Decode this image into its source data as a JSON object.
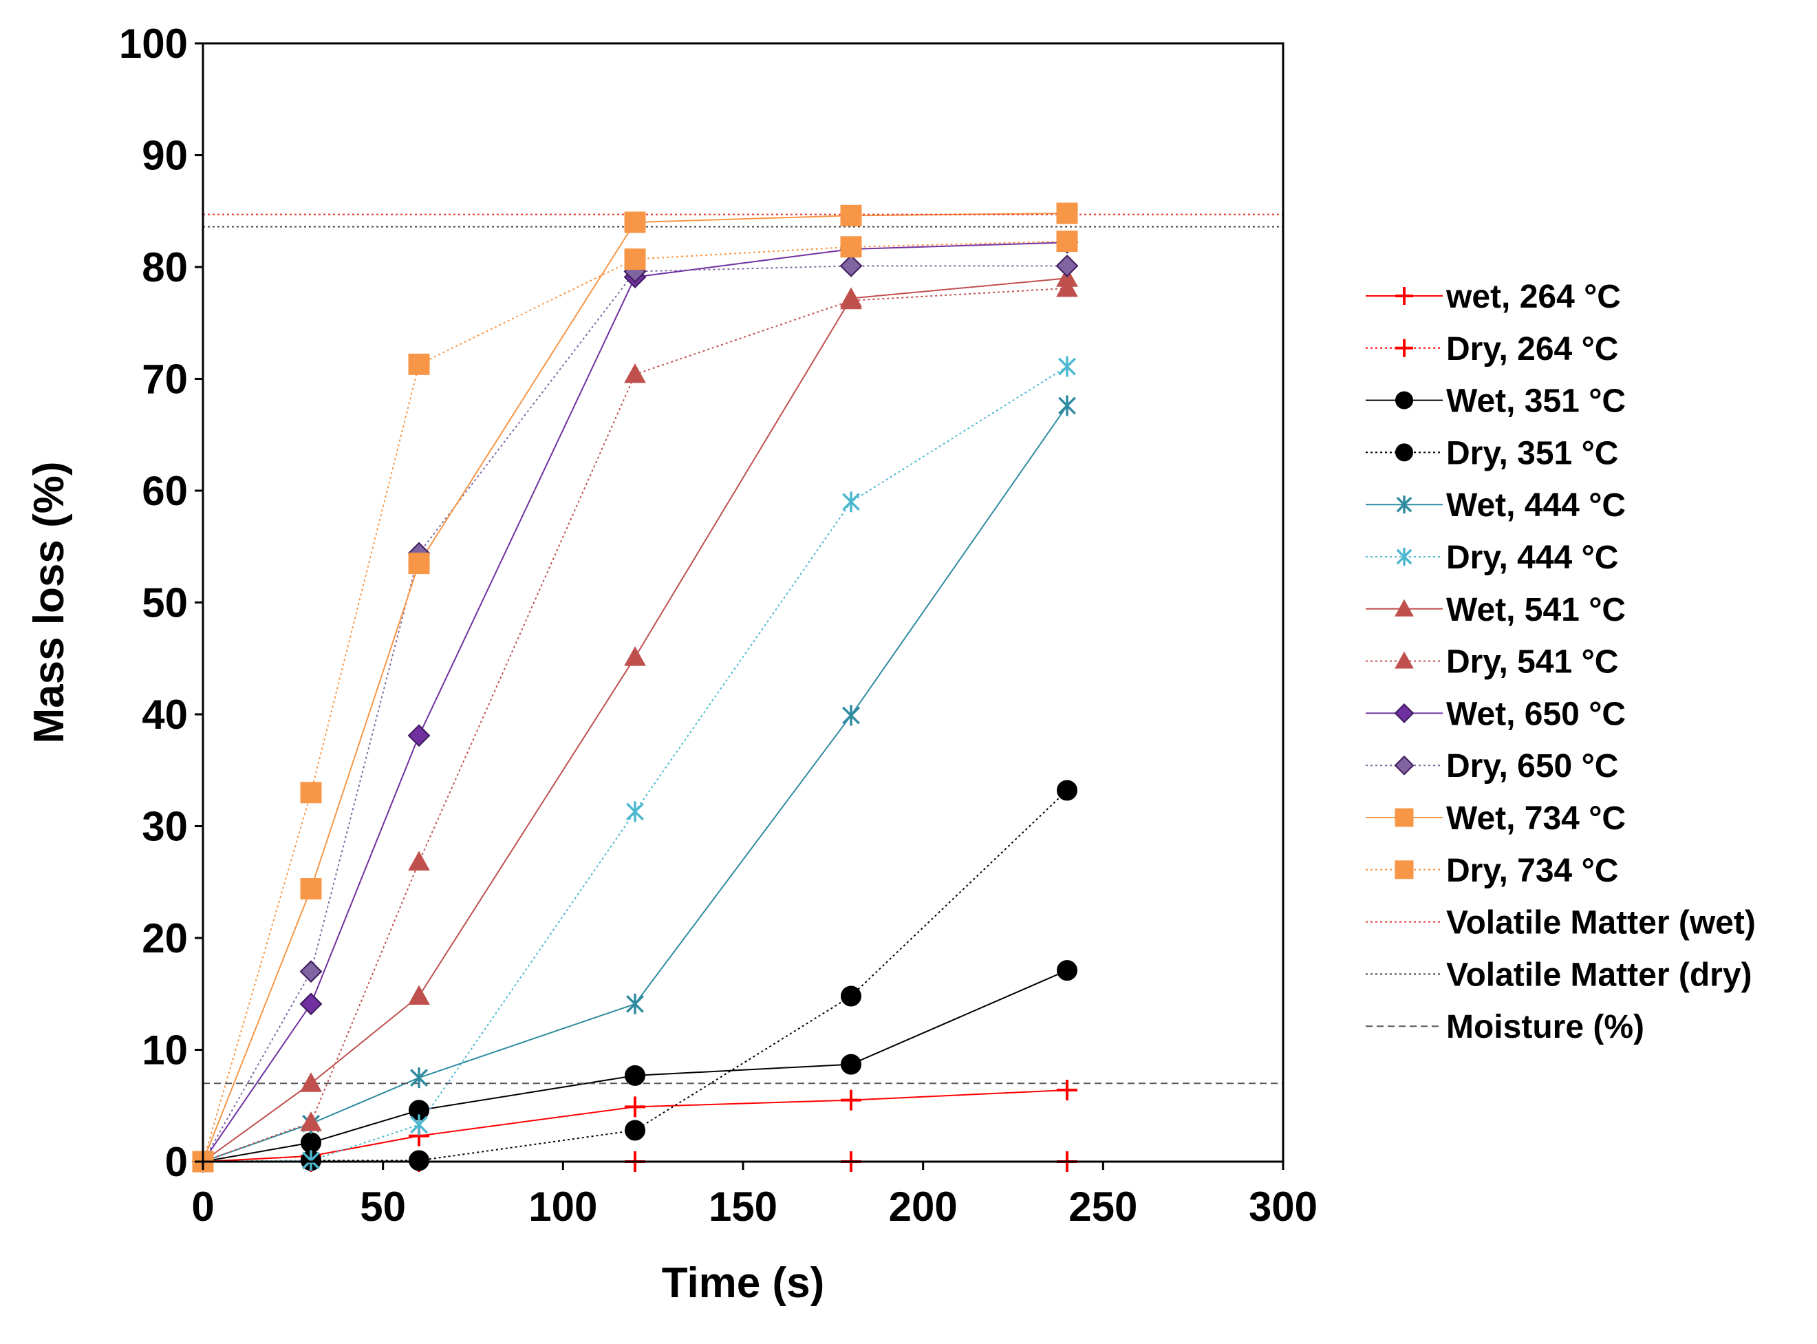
{
  "chart_data": {
    "type": "line",
    "title": "",
    "xlabel": "Time (s)",
    "ylabel": "Mass loss (%)",
    "xlim": [
      0,
      300
    ],
    "ylim": [
      0,
      100
    ],
    "xticks": [
      "0",
      "50",
      "100",
      "150",
      "200",
      "250",
      "300"
    ],
    "yticks": [
      "0",
      "10",
      "20",
      "30",
      "40",
      "50",
      "60",
      "70",
      "80",
      "90",
      "100"
    ],
    "grid": false,
    "legend_position": "right",
    "series": [
      {
        "name": "wet, 264 °C",
        "x": [
          0,
          30,
          60,
          120,
          180,
          240
        ],
        "y": [
          0,
          0.5,
          2.3,
          4.9,
          5.5,
          6.4
        ],
        "color": "#ff0000",
        "marker": "plus",
        "line": "solid"
      },
      {
        "name": "Dry, 264 °C",
        "x": [
          0,
          30,
          60,
          120,
          180,
          240
        ],
        "y": [
          0,
          0,
          0,
          0,
          0,
          0
        ],
        "color": "#ff0000",
        "marker": "plus",
        "line": "dotted"
      },
      {
        "name": "Wet, 351 °C",
        "x": [
          0,
          30,
          60,
          120,
          180,
          240
        ],
        "y": [
          0,
          1.7,
          4.6,
          7.7,
          8.7,
          17.1
        ],
        "color": "#000000",
        "marker": "circle",
        "line": "solid"
      },
      {
        "name": "Dry, 351 °C",
        "x": [
          0,
          30,
          60,
          120,
          180,
          240
        ],
        "y": [
          0,
          0.1,
          0.1,
          2.8,
          14.8,
          33.2
        ],
        "color": "#000000",
        "marker": "circle",
        "line": "dotted"
      },
      {
        "name": "Wet, 444 °C",
        "x": [
          0,
          30,
          60,
          120,
          180,
          240
        ],
        "y": [
          0,
          3.4,
          7.5,
          14.1,
          39.9,
          67.6
        ],
        "color": "#2f8ba0",
        "marker": "asterisk",
        "line": "solid"
      },
      {
        "name": "Dry, 444 °C",
        "x": [
          0,
          30,
          60,
          120,
          180,
          240
        ],
        "y": [
          0,
          0.1,
          3.3,
          31.3,
          59.0,
          71.1
        ],
        "color": "#4bb8d0",
        "marker": "asterisk",
        "line": "dotted"
      },
      {
        "name": "Wet, 541 °C",
        "x": [
          0,
          30,
          60,
          120,
          180,
          240
        ],
        "y": [
          0,
          7.0,
          14.8,
          45.1,
          77.2,
          79.0
        ],
        "color": "#c0504d",
        "marker": "triangle",
        "line": "solid"
      },
      {
        "name": "Dry, 541 °C",
        "x": [
          0,
          30,
          60,
          120,
          180,
          240
        ],
        "y": [
          0,
          3.5,
          26.8,
          70.4,
          77.0,
          78.1
        ],
        "color": "#c0504d",
        "marker": "triangle",
        "line": "dotted"
      },
      {
        "name": "Wet, 650 °C",
        "x": [
          0,
          30,
          60,
          120,
          180,
          240
        ],
        "y": [
          0,
          14.1,
          38.1,
          79.1,
          81.6,
          82.2
        ],
        "color": "#7030a0",
        "marker": "diamond",
        "line": "solid"
      },
      {
        "name": "Dry, 650 °C",
        "x": [
          0,
          30,
          60,
          120,
          180,
          240
        ],
        "y": [
          0,
          17.0,
          54.4,
          79.6,
          80.1,
          80.1
        ],
        "color": "#8064a2",
        "marker": "diamond",
        "line": "dotted"
      },
      {
        "name": "Wet, 734 °C",
        "x": [
          0,
          30,
          60,
          120,
          180,
          240
        ],
        "y": [
          0,
          24.4,
          53.5,
          84.0,
          84.6,
          84.8
        ],
        "color": "#f79646",
        "marker": "square",
        "line": "solid"
      },
      {
        "name": "Dry, 734 °C",
        "x": [
          0,
          30,
          60,
          120,
          180,
          240
        ],
        "y": [
          0,
          33.0,
          71.3,
          80.7,
          81.8,
          82.3
        ],
        "color": "#f79646",
        "marker": "square",
        "line": "dotted"
      }
    ],
    "reference_lines": [
      {
        "name": "Volatile Matter (wet)",
        "y": 84.7,
        "color": "#e8382f",
        "line": "dotted"
      },
      {
        "name": "Volatile Matter (dry)",
        "y": 83.6,
        "color": "#404040",
        "line": "dotted"
      },
      {
        "name": "Moisture (%)",
        "y": 7.0,
        "color": "#595959",
        "line": "dashed"
      }
    ]
  }
}
